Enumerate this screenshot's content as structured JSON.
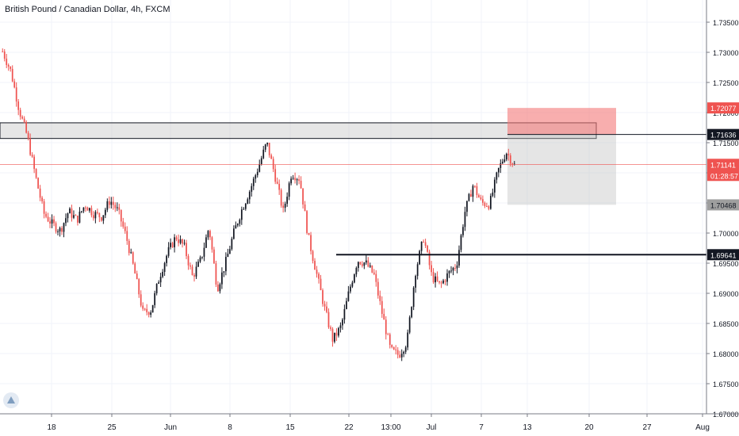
{
  "chart_data": {
    "type": "candlestick",
    "title": "British Pound / Canadian Dollar, 4h, FXCM",
    "x_ticks": [
      "18",
      "25",
      "Jun",
      "8",
      "15",
      "22",
      "13:00",
      "Jul",
      "7",
      "13",
      "20",
      "27",
      "Aug"
    ],
    "y_ticks": [
      "1.73500",
      "1.73000",
      "1.72500",
      "1.72000",
      "1.71500",
      "1.71000",
      "1.70500",
      "1.70000",
      "1.69500",
      "1.69000",
      "1.68500",
      "1.68000",
      "1.67500",
      "1.67000"
    ],
    "ylim": [
      1.67,
      1.7385
    ],
    "price_path": [
      [
        1.7305,
        1.7298
      ],
      [
        1.7275,
        1.7262
      ],
      [
        1.7215,
        1.7195
      ],
      [
        1.7168,
        1.7152
      ],
      [
        1.7102,
        1.7085
      ],
      [
        1.704,
        1.7025
      ],
      [
        1.7018,
        1.7012
      ],
      [
        1.7005,
        1.7003
      ],
      [
        1.7038,
        1.7035
      ],
      [
        1.7015,
        1.7028
      ],
      [
        1.705,
        1.7045
      ],
      [
        1.703,
        1.7035
      ],
      [
        1.7012,
        1.7042
      ],
      [
        1.7065,
        1.7045
      ],
      [
        1.704,
        1.7032
      ],
      [
        1.7,
        1.6985
      ],
      [
        1.6945,
        1.6925
      ],
      [
        1.6875,
        1.686
      ],
      [
        1.6855,
        1.689
      ],
      [
        1.692,
        1.6935
      ],
      [
        1.697,
        1.6965
      ],
      [
        1.7,
        1.6988
      ],
      [
        1.6985,
        1.697
      ],
      [
        1.6935,
        1.692
      ],
      [
        1.6945,
        1.6965
      ],
      [
        1.7,
        1.702
      ],
      [
        1.693,
        1.6885
      ],
      [
        1.694,
        1.696
      ],
      [
        1.699,
        1.701
      ],
      [
        1.7035,
        1.7045
      ],
      [
        1.7065,
        1.708
      ],
      [
        1.71,
        1.712
      ],
      [
        1.714,
        1.716
      ],
      [
        1.711,
        1.708
      ],
      [
        1.704,
        1.703
      ],
      [
        1.7085,
        1.7115
      ],
      [
        1.714,
        1.704
      ],
      [
        1.701,
        1.698
      ],
      [
        1.695,
        1.692
      ],
      [
        1.689,
        1.686
      ],
      [
        1.683,
        1.6815
      ],
      [
        1.683,
        1.686
      ],
      [
        1.689,
        1.692
      ],
      [
        1.695,
        1.696
      ],
      [
        1.6945,
        1.6955
      ],
      [
        1.694,
        1.692
      ],
      [
        1.688,
        1.685
      ],
      [
        1.6815,
        1.6795
      ],
      [
        1.6785,
        1.681
      ],
      [
        1.684,
        1.68
      ],
      [
        1.691,
        1.696
      ],
      [
        1.7,
        1.6985
      ],
      [
        1.694,
        1.6915
      ],
      [
        1.6905,
        1.692
      ],
      [
        1.6925,
        1.694
      ],
      [
        1.6935,
        1.696
      ],
      [
        1.701,
        1.706
      ],
      [
        1.7085,
        1.7075
      ],
      [
        1.7055,
        1.7045
      ],
      [
        1.7035,
        1.706
      ],
      [
        1.709,
        1.7115
      ],
      [
        1.7145,
        1.7125
      ],
      [
        1.7115,
        1.711
      ]
    ],
    "horizontal_levels": [
      {
        "label": "1.72077",
        "value": 1.72077,
        "color": "#ef5350"
      },
      {
        "label": "1.71636",
        "value": 1.71636,
        "color": "#131722"
      },
      {
        "label": "1.71141",
        "value": 1.71141,
        "color": "#ef5350"
      },
      {
        "label": "1.70468",
        "value": 1.70468,
        "color": "#9e9e9e"
      },
      {
        "label": "1.69641",
        "value": 1.69641,
        "color": "#131722"
      }
    ],
    "countdown": "01:28:57",
    "zones": [
      {
        "kind": "resistance-box",
        "y_top": 1.7183,
        "y_bottom": 1.7157
      },
      {
        "kind": "stop-loss-box",
        "y_top": 1.72077,
        "y_bottom": 1.71636
      },
      {
        "kind": "target-box",
        "y_top": 1.71636,
        "y_bottom": 1.70468
      }
    ]
  },
  "colors": {
    "up": "#131722",
    "down": "#ef5350",
    "grid": "#f0f3fa",
    "axis_text": "#131722"
  },
  "icons": {
    "logo": "tradingview-logo-icon"
  }
}
